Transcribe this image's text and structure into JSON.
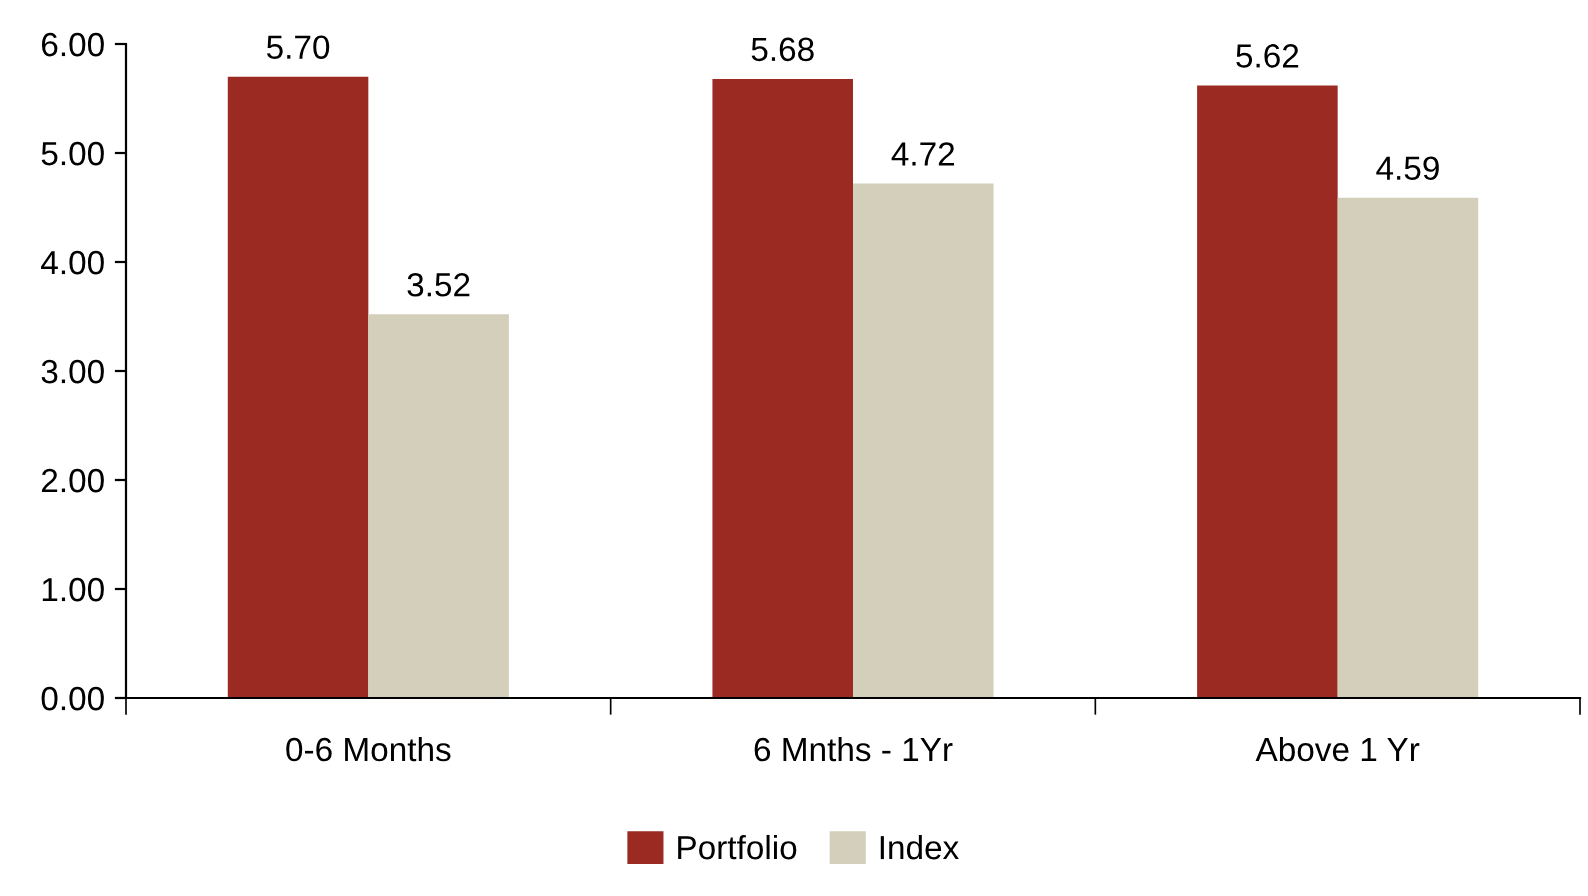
{
  "chart_data": {
    "type": "bar",
    "categories": [
      "0-6 Months",
      "6 Mnths - 1Yr",
      "Above 1 Yr"
    ],
    "series": [
      {
        "name": "Portfolio",
        "color": "#9b2a22",
        "values": [
          5.7,
          5.68,
          5.62
        ],
        "value_labels": [
          "5.70",
          "5.68",
          "5.62"
        ]
      },
      {
        "name": "Index",
        "color": "#d3cfbb",
        "values": [
          3.52,
          4.72,
          4.59
        ],
        "value_labels": [
          "3.52",
          "4.72",
          "4.59"
        ]
      }
    ],
    "ylim": [
      0,
      6
    ],
    "yticks": [
      {
        "value": 0,
        "label": "0.00"
      },
      {
        "value": 1,
        "label": "1.00"
      },
      {
        "value": 2,
        "label": "2.00"
      },
      {
        "value": 3,
        "label": "3.00"
      },
      {
        "value": 4,
        "label": "4.00"
      },
      {
        "value": 5,
        "label": "5.00"
      },
      {
        "value": 6,
        "label": "6.00"
      }
    ],
    "grid": false,
    "legend": "bottom"
  }
}
